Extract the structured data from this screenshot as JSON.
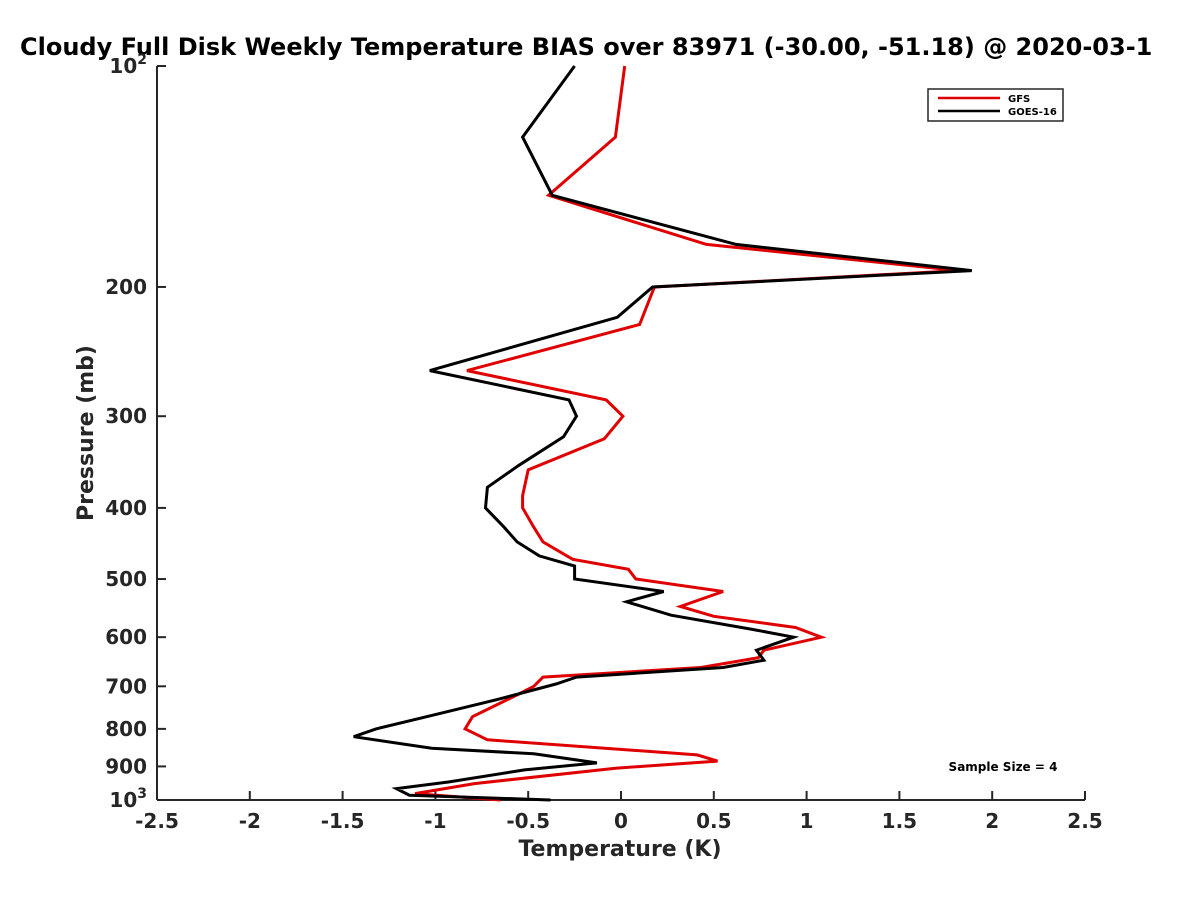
{
  "chart_data": {
    "type": "line",
    "title": "Cloudy Full Disk Weekly Temperature BIAS over 83971 (-30.00, -51.18) @ 2020-03-1",
    "xlabel": "Temperature (K)",
    "ylabel": "Pressure (mb)",
    "xlim": [
      -2.5,
      2.5
    ],
    "ylim": [
      100,
      1000
    ],
    "y_scale": "log",
    "y_reversed": true,
    "grid": false,
    "legend_position": "top-right",
    "x_ticks": [
      {
        "value": -2.5,
        "label": "-2.5"
      },
      {
        "value": -2,
        "label": "-2"
      },
      {
        "value": -1.5,
        "label": "-1.5"
      },
      {
        "value": -1,
        "label": "-1"
      },
      {
        "value": -0.5,
        "label": "-0.5"
      },
      {
        "value": 0,
        "label": "0"
      },
      {
        "value": 0.5,
        "label": "0.5"
      },
      {
        "value": 1,
        "label": "1"
      },
      {
        "value": 1.5,
        "label": "1.5"
      },
      {
        "value": 2,
        "label": "2"
      },
      {
        "value": 2.5,
        "label": "2.5"
      }
    ],
    "y_ticks": [
      {
        "value": 100,
        "label": "10",
        "sup": "2"
      },
      {
        "value": 200,
        "label": "200"
      },
      {
        "value": 300,
        "label": "300"
      },
      {
        "value": 400,
        "label": "400"
      },
      {
        "value": 500,
        "label": "500"
      },
      {
        "value": 600,
        "label": "600"
      },
      {
        "value": 700,
        "label": "700"
      },
      {
        "value": 800,
        "label": "800"
      },
      {
        "value": 900,
        "label": "900"
      },
      {
        "value": 1000,
        "label": "10",
        "sup": "3"
      }
    ],
    "series": [
      {
        "name": "GFS",
        "color": "#e00000",
        "points": [
          [
            0.02,
            100
          ],
          [
            -0.03,
            125
          ],
          [
            -0.39,
            150
          ],
          [
            0.46,
            175
          ],
          [
            1.82,
            190
          ],
          [
            0.18,
            200
          ],
          [
            0.1,
            225
          ],
          [
            -0.83,
            260
          ],
          [
            -0.08,
            285
          ],
          [
            0.01,
            300
          ],
          [
            -0.09,
            322
          ],
          [
            -0.5,
            355
          ],
          [
            -0.53,
            385
          ],
          [
            -0.53,
            400
          ],
          [
            -0.47,
            425
          ],
          [
            -0.42,
            445
          ],
          [
            -0.26,
            470
          ],
          [
            0.04,
            485
          ],
          [
            0.08,
            500
          ],
          [
            0.55,
            520
          ],
          [
            0.32,
            545
          ],
          [
            0.5,
            562
          ],
          [
            0.94,
            582
          ],
          [
            1.08,
            600
          ],
          [
            0.77,
            625
          ],
          [
            0.74,
            640
          ],
          [
            0.43,
            660
          ],
          [
            -0.42,
            680
          ],
          [
            -0.47,
            700
          ],
          [
            -0.55,
            717
          ],
          [
            -0.8,
            770
          ],
          [
            -0.84,
            800
          ],
          [
            -0.72,
            828
          ],
          [
            0.41,
            868
          ],
          [
            0.52,
            885
          ],
          [
            -0.03,
            905
          ],
          [
            -0.79,
            950
          ],
          [
            -1.11,
            980
          ],
          [
            -0.65,
            1000
          ]
        ]
      },
      {
        "name": "GOES-16",
        "color": "#000000",
        "points": [
          [
            -0.25,
            100
          ],
          [
            -0.53,
            125
          ],
          [
            -0.37,
            150
          ],
          [
            0.62,
            175
          ],
          [
            1.89,
            190
          ],
          [
            0.17,
            200
          ],
          [
            -0.02,
            220
          ],
          [
            -1.03,
            260
          ],
          [
            -0.28,
            285
          ],
          [
            -0.24,
            300
          ],
          [
            -0.31,
            320
          ],
          [
            -0.55,
            350
          ],
          [
            -0.72,
            375
          ],
          [
            -0.73,
            400
          ],
          [
            -0.63,
            425
          ],
          [
            -0.56,
            445
          ],
          [
            -0.44,
            465
          ],
          [
            -0.25,
            480
          ],
          [
            -0.25,
            500
          ],
          [
            0.23,
            520
          ],
          [
            0.03,
            537
          ],
          [
            0.27,
            560
          ],
          [
            0.7,
            585
          ],
          [
            0.93,
            600
          ],
          [
            0.73,
            625
          ],
          [
            0.77,
            645
          ],
          [
            0.55,
            660
          ],
          [
            -0.24,
            680
          ],
          [
            -0.35,
            695
          ],
          [
            -0.67,
            730
          ],
          [
            -1.0,
            765
          ],
          [
            -1.32,
            800
          ],
          [
            -1.44,
            820
          ],
          [
            -1.02,
            850
          ],
          [
            -0.47,
            865
          ],
          [
            -0.13,
            890
          ],
          [
            -0.52,
            910
          ],
          [
            -0.93,
            945
          ],
          [
            -1.21,
            965
          ],
          [
            -1.14,
            985
          ],
          [
            -0.38,
            1000
          ]
        ]
      }
    ],
    "annotation": "Sample Size = 4"
  }
}
